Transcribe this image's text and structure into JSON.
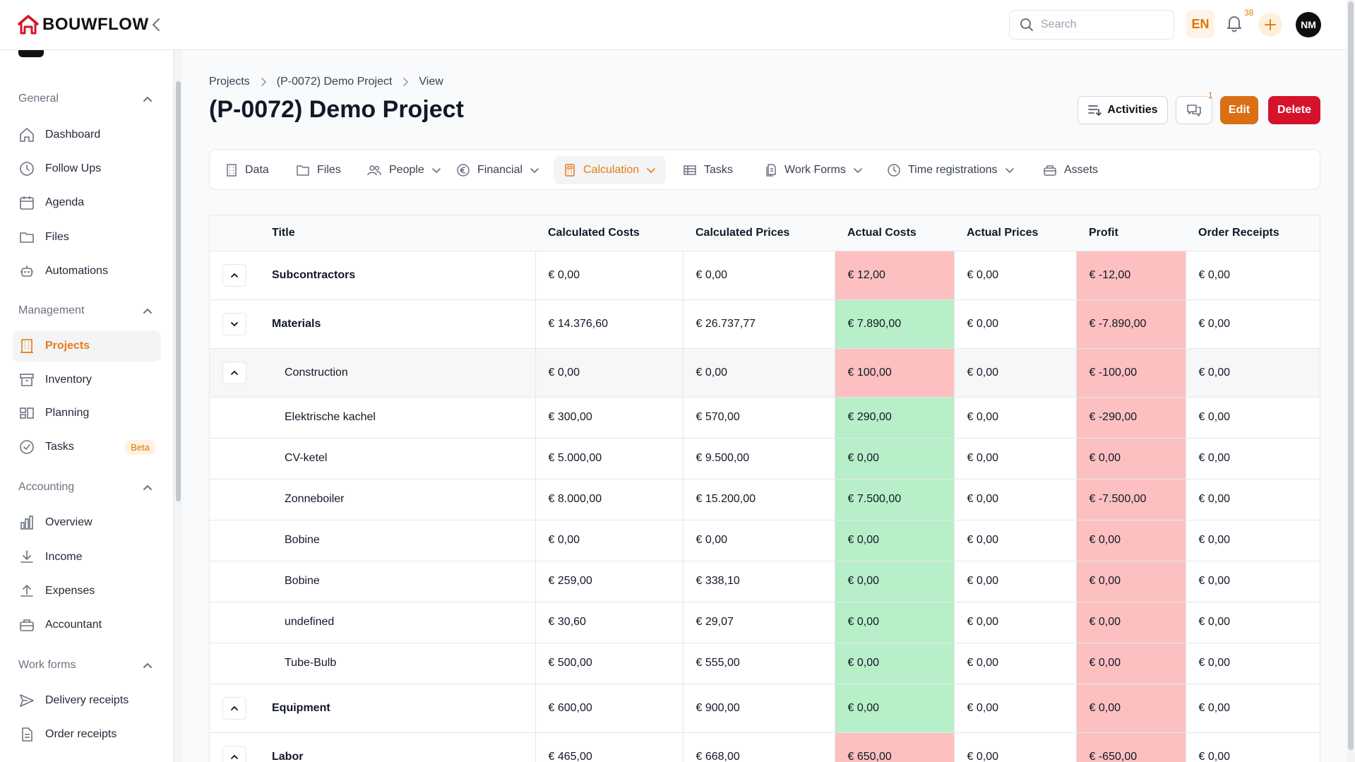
{
  "app": {
    "name": "BOUWFLOW"
  },
  "header": {
    "search_placeholder": "Search",
    "language": "EN",
    "notifications_count": "38",
    "user_initials": "NM"
  },
  "sidebar": {
    "sections": [
      {
        "label": "General",
        "items": [
          "Dashboard",
          "Follow Ups",
          "Agenda",
          "Files",
          "Automations"
        ]
      },
      {
        "label": "Management",
        "items": [
          "Projects",
          "Inventory",
          "Planning",
          "Tasks"
        ]
      },
      {
        "label": "Accounting",
        "items": [
          "Overview",
          "Income",
          "Expenses",
          "Accountant"
        ]
      },
      {
        "label": "Work forms",
        "items": [
          "Delivery receipts",
          "Order receipts"
        ]
      }
    ],
    "active_item": "Projects",
    "tasks_badge": "Beta"
  },
  "breadcrumb": [
    "Projects",
    "(P-0072) Demo Project",
    "View"
  ],
  "page_title": "(P-0072) Demo Project",
  "actions": {
    "activities": "Activities",
    "comments_count": "1",
    "edit": "Edit",
    "delete": "Delete"
  },
  "tabs": [
    "Data",
    "Files",
    "People",
    "Financial",
    "Calculation",
    "Tasks",
    "Work Forms",
    "Time registrations",
    "Assets"
  ],
  "active_tab": "Calculation",
  "table": {
    "columns": [
      "Title",
      "Calculated Costs",
      "Calculated Prices",
      "Actual Costs",
      "Actual Prices",
      "Profit",
      "Order Receipts"
    ],
    "rows": [
      {
        "title": "Subcontractors",
        "calc_costs": "€ 0,00",
        "calc_prices": "€ 0,00",
        "actual_costs": "€ 12,00",
        "actual_prices": "€ 0,00",
        "profit": "€ -12,00",
        "order_receipts": "€ 0,00"
      },
      {
        "title": "Materials",
        "calc_costs": "€ 14.376,60",
        "calc_prices": "€ 26.737,77",
        "actual_costs": "€ 7.890,00",
        "actual_prices": "€ 0,00",
        "profit": "€ -7.890,00",
        "order_receipts": "€ 0,00"
      },
      {
        "title": "Construction",
        "calc_costs": "€ 0,00",
        "calc_prices": "€ 0,00",
        "actual_costs": "€ 100,00",
        "actual_prices": "€ 0,00",
        "profit": "€ -100,00",
        "order_receipts": "€ 0,00"
      },
      {
        "title": "Elektrische kachel",
        "calc_costs": "€ 300,00",
        "calc_prices": "€ 570,00",
        "actual_costs": "€ 290,00",
        "actual_prices": "€ 0,00",
        "profit": "€ -290,00",
        "order_receipts": "€ 0,00"
      },
      {
        "title": "CV-ketel",
        "calc_costs": "€ 5.000,00",
        "calc_prices": "€ 9.500,00",
        "actual_costs": "€ 0,00",
        "actual_prices": "€ 0,00",
        "profit": "€ 0,00",
        "order_receipts": "€ 0,00"
      },
      {
        "title": "Zonneboiler",
        "calc_costs": "€ 8.000,00",
        "calc_prices": "€ 15.200,00",
        "actual_costs": "€ 7.500,00",
        "actual_prices": "€ 0,00",
        "profit": "€ -7.500,00",
        "order_receipts": "€ 0,00"
      },
      {
        "title": "Bobine",
        "calc_costs": "€ 0,00",
        "calc_prices": "€ 0,00",
        "actual_costs": "€ 0,00",
        "actual_prices": "€ 0,00",
        "profit": "€ 0,00",
        "order_receipts": "€ 0,00"
      },
      {
        "title": "Bobine",
        "calc_costs": "€ 259,00",
        "calc_prices": "€ 338,10",
        "actual_costs": "€ 0,00",
        "actual_prices": "€ 0,00",
        "profit": "€ 0,00",
        "order_receipts": "€ 0,00"
      },
      {
        "title": "undefined",
        "calc_costs": "€ 30,60",
        "calc_prices": "€ 29,07",
        "actual_costs": "€ 0,00",
        "actual_prices": "€ 0,00",
        "profit": "€ 0,00",
        "order_receipts": "€ 0,00"
      },
      {
        "title": "Tube-Bulb",
        "calc_costs": "€ 500,00",
        "calc_prices": "€ 555,00",
        "actual_costs": "€ 0,00",
        "actual_prices": "€ 0,00",
        "profit": "€ 0,00",
        "order_receipts": "€ 0,00"
      },
      {
        "title": "Equipment",
        "calc_costs": "€ 600,00",
        "calc_prices": "€ 900,00",
        "actual_costs": "€ 0,00",
        "actual_prices": "€ 0,00",
        "profit": "€ 0,00",
        "order_receipts": "€ 0,00"
      },
      {
        "title": "Labor",
        "calc_costs": "€ 465,00",
        "calc_prices": "€ 668,00",
        "actual_costs": "€ 650,00",
        "actual_prices": "€ 0,00",
        "profit": "€ -650,00",
        "order_receipts": "€ 0,00"
      }
    ]
  },
  "colors": {
    "accent": "#e87b14",
    "danger": "#d5132a",
    "cell_negative": "#fcc0c0",
    "cell_positive": "#b7efc8"
  }
}
